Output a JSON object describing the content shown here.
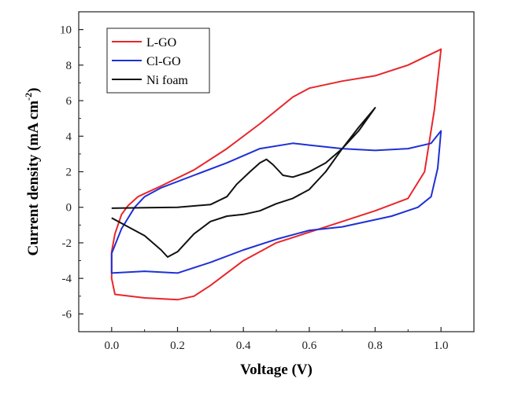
{
  "chart_data": {
    "type": "line",
    "xlabel": "Voltage (V)",
    "ylabel": {
      "main": "Current density (mA cm",
      "sup": "-2",
      "close": ")"
    },
    "xlim": [
      -0.1,
      1.1
    ],
    "ylim": [
      -7,
      11
    ],
    "x_ticks": [
      0.0,
      0.2,
      0.4,
      0.6,
      0.8,
      1.0
    ],
    "x_tick_labels": [
      "0.0",
      "0.2",
      "0.4",
      "0.6",
      "0.8",
      "1.0"
    ],
    "y_ticks": [
      -6,
      -4,
      -2,
      0,
      2,
      4,
      6,
      8,
      10
    ],
    "y_tick_labels": [
      "-6",
      "-4",
      "-2",
      "0",
      "2",
      "4",
      "6",
      "8",
      "10"
    ],
    "grid": false,
    "legend_position": "top-left",
    "series": [
      {
        "name": "L-GO",
        "color": "#e8262b",
        "points": [
          [
            0.05,
            0.1
          ],
          [
            0.08,
            0.6
          ],
          [
            0.15,
            1.2
          ],
          [
            0.25,
            2.1
          ],
          [
            0.35,
            3.3
          ],
          [
            0.45,
            4.7
          ],
          [
            0.55,
            6.2
          ],
          [
            0.6,
            6.7
          ],
          [
            0.7,
            7.1
          ],
          [
            0.8,
            7.4
          ],
          [
            0.9,
            8.0
          ],
          [
            0.99,
            8.8
          ],
          [
            1.0,
            8.9
          ],
          [
            0.98,
            5.5
          ],
          [
            0.95,
            2.0
          ],
          [
            0.9,
            0.5
          ],
          [
            0.8,
            -0.2
          ],
          [
            0.7,
            -0.8
          ],
          [
            0.6,
            -1.4
          ],
          [
            0.5,
            -2.0
          ],
          [
            0.4,
            -3.0
          ],
          [
            0.3,
            -4.4
          ],
          [
            0.25,
            -5.0
          ],
          [
            0.2,
            -5.2
          ],
          [
            0.1,
            -5.1
          ],
          [
            0.01,
            -4.9
          ],
          [
            0.0,
            -4.0
          ],
          [
            0.0,
            -2.5
          ],
          [
            0.01,
            -1.5
          ],
          [
            0.03,
            -0.4
          ],
          [
            0.05,
            0.1
          ]
        ]
      },
      {
        "name": "Cl-GO",
        "color": "#1f30d6",
        "points": [
          [
            0.07,
            0.0
          ],
          [
            0.1,
            0.6
          ],
          [
            0.15,
            1.1
          ],
          [
            0.25,
            1.8
          ],
          [
            0.35,
            2.5
          ],
          [
            0.45,
            3.3
          ],
          [
            0.55,
            3.6
          ],
          [
            0.6,
            3.5
          ],
          [
            0.7,
            3.3
          ],
          [
            0.8,
            3.2
          ],
          [
            0.9,
            3.3
          ],
          [
            0.97,
            3.6
          ],
          [
            1.0,
            4.3
          ],
          [
            0.99,
            2.2
          ],
          [
            0.97,
            0.6
          ],
          [
            0.93,
            0.0
          ],
          [
            0.85,
            -0.5
          ],
          [
            0.7,
            -1.1
          ],
          [
            0.6,
            -1.3
          ],
          [
            0.5,
            -1.8
          ],
          [
            0.4,
            -2.4
          ],
          [
            0.3,
            -3.1
          ],
          [
            0.2,
            -3.7
          ],
          [
            0.1,
            -3.6
          ],
          [
            0.0,
            -3.7
          ],
          [
            0.0,
            -2.6
          ],
          [
            0.03,
            -1.2
          ],
          [
            0.07,
            0.0
          ]
        ]
      },
      {
        "name": "Ni foam",
        "color": "#111111",
        "points": [
          [
            0.0,
            -0.05
          ],
          [
            0.1,
            -0.02
          ],
          [
            0.2,
            0.0
          ],
          [
            0.3,
            0.15
          ],
          [
            0.35,
            0.6
          ],
          [
            0.38,
            1.3
          ],
          [
            0.42,
            2.0
          ],
          [
            0.45,
            2.5
          ],
          [
            0.47,
            2.7
          ],
          [
            0.49,
            2.4
          ],
          [
            0.52,
            1.8
          ],
          [
            0.55,
            1.7
          ],
          [
            0.6,
            2.0
          ],
          [
            0.65,
            2.5
          ],
          [
            0.7,
            3.3
          ],
          [
            0.75,
            4.3
          ],
          [
            0.8,
            5.6
          ],
          [
            0.75,
            4.5
          ],
          [
            0.7,
            3.3
          ],
          [
            0.65,
            2.0
          ],
          [
            0.6,
            1.0
          ],
          [
            0.55,
            0.5
          ],
          [
            0.5,
            0.2
          ],
          [
            0.45,
            -0.2
          ],
          [
            0.4,
            -0.4
          ],
          [
            0.35,
            -0.5
          ],
          [
            0.3,
            -0.8
          ],
          [
            0.25,
            -1.5
          ],
          [
            0.2,
            -2.5
          ],
          [
            0.17,
            -2.8
          ],
          [
            0.15,
            -2.4
          ],
          [
            0.1,
            -1.6
          ],
          [
            0.05,
            -1.1
          ],
          [
            0.0,
            -0.6
          ]
        ]
      }
    ]
  }
}
